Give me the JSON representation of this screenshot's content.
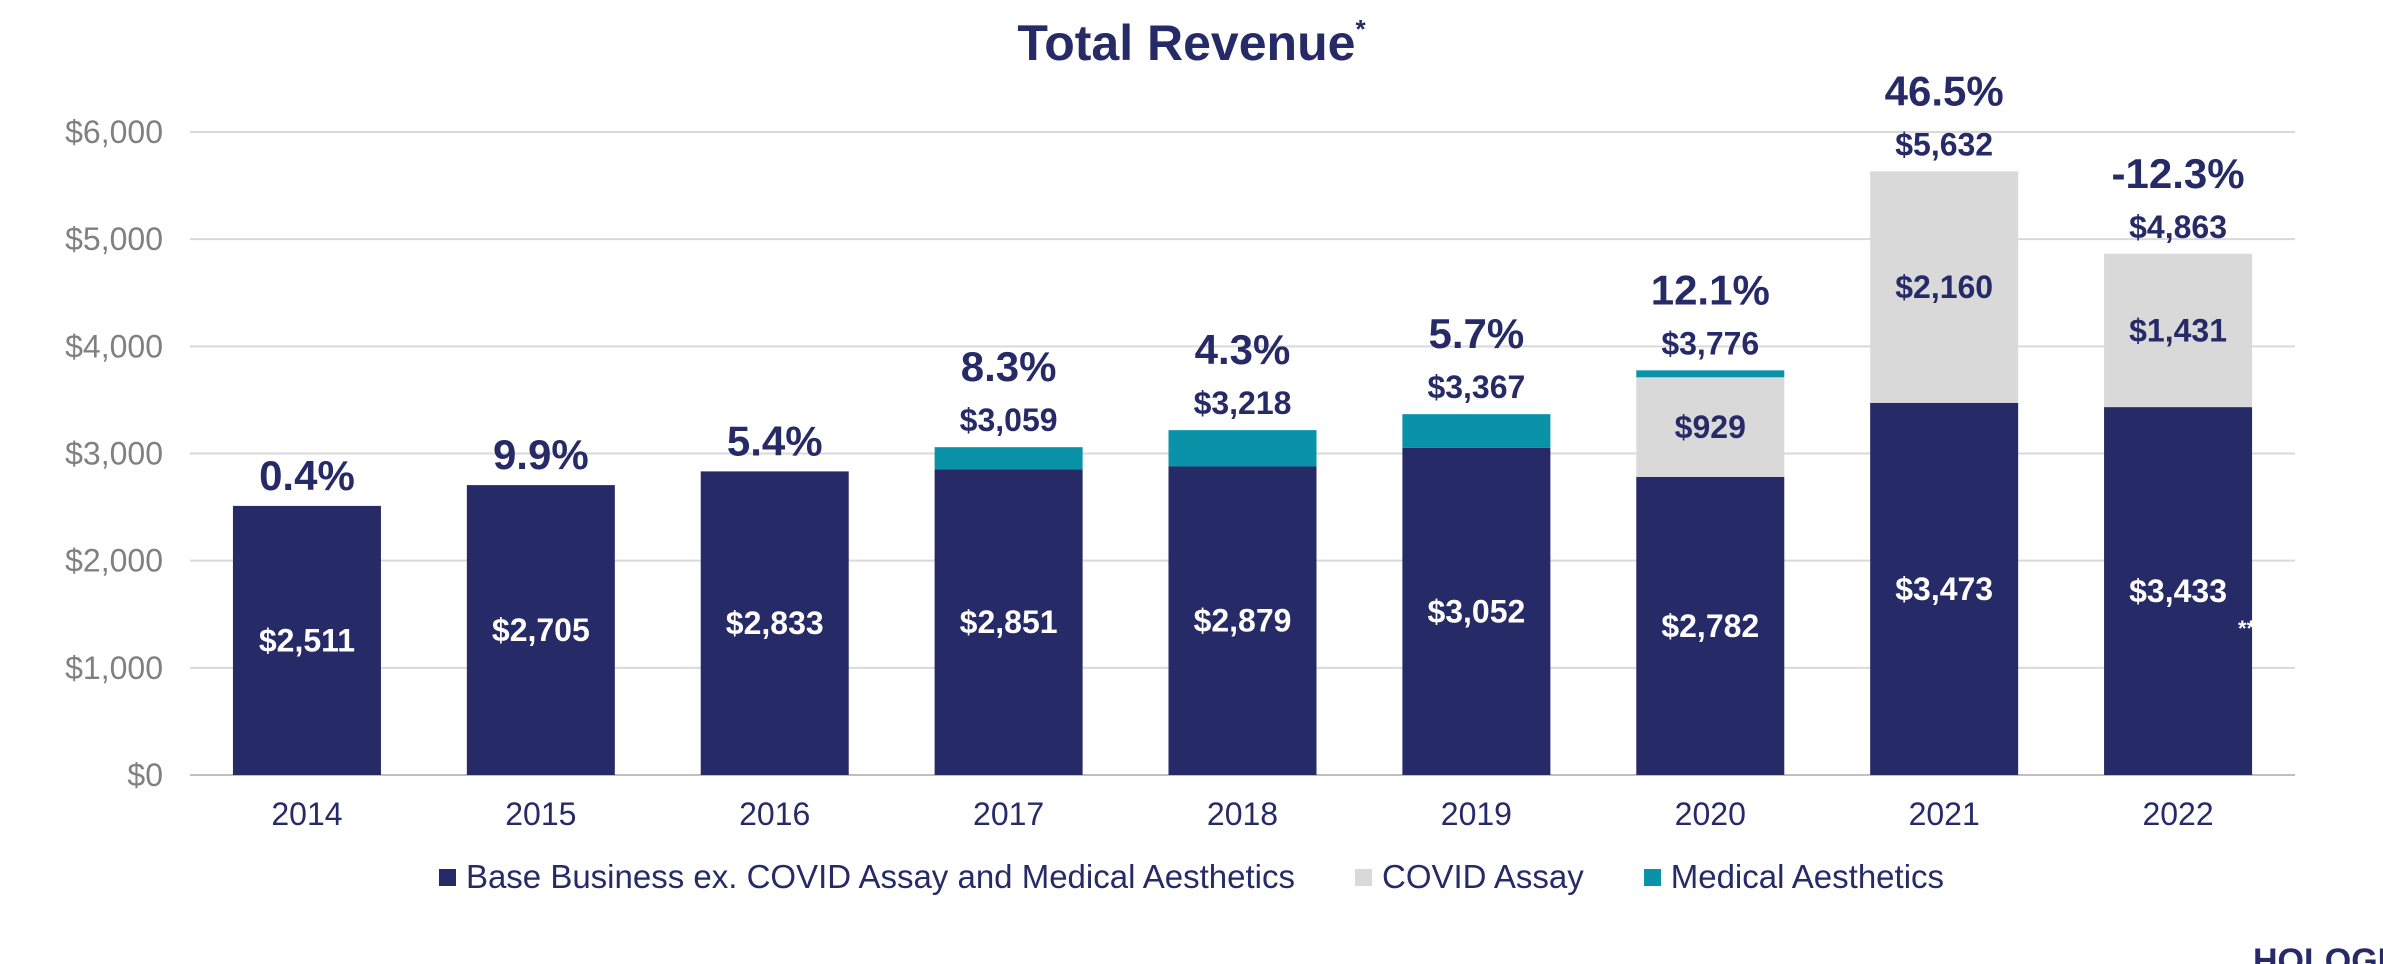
{
  "chart_data": {
    "type": "bar",
    "stacked": true,
    "title": "Total Revenue",
    "title_marker": "*",
    "categories": [
      "2014",
      "2015",
      "2016",
      "2017",
      "2018",
      "2019",
      "2020",
      "2021",
      "2022"
    ],
    "series": [
      {
        "name": "Base Business ex. COVID Assay and Medical Aesthetics",
        "color": "#262A67",
        "values": [
          2511,
          2705,
          2833,
          2851,
          2879,
          3052,
          2782,
          3473,
          3433
        ],
        "labels": [
          "$2,511",
          "$2,705",
          "$2,833",
          "$2,851",
          "$2,879",
          "$3,052",
          "$2,782",
          "$3,473",
          "$3,433"
        ]
      },
      {
        "name": "COVID Assay",
        "color": "#D9D9D9",
        "values": [
          0,
          0,
          0,
          0,
          0,
          0,
          929,
          2160,
          1431
        ],
        "labels": [
          "",
          "",
          "",
          "",
          "",
          "",
          "$929",
          "$2,160",
          "$1,431"
        ]
      },
      {
        "name": "Medical Aesthetics",
        "color": "#0A93A8",
        "values": [
          0,
          0,
          0,
          208,
          339,
          315,
          65,
          0,
          0
        ],
        "labels": [
          "",
          "",
          "",
          "",
          "",
          "",
          "",
          "",
          ""
        ]
      }
    ],
    "totals": [
      2511,
      2705,
      2833,
      3059,
      3218,
      3367,
      3776,
      5632,
      4863
    ],
    "total_labels": [
      "",
      "",
      "",
      "$3,059",
      "$3,218",
      "$3,367",
      "$3,776",
      "$5,632",
      "$4,863"
    ],
    "growth_labels": [
      "0.4%",
      "9.9%",
      "5.4%",
      "8.3%",
      "4.3%",
      "5.7%",
      "12.1%",
      "46.5%",
      "-12.3%"
    ],
    "footnote_marker_2022": "**",
    "yticks": [
      "$0",
      "$1,000",
      "$2,000",
      "$3,000",
      "$4,000",
      "$5,000",
      "$6,000"
    ],
    "ylim": [
      0,
      6000
    ],
    "grid": true,
    "legend_position": "bottom",
    "label_color": "#262A67",
    "axis_text_color": "#808080"
  },
  "logo_fragment": "HOLOGIC"
}
